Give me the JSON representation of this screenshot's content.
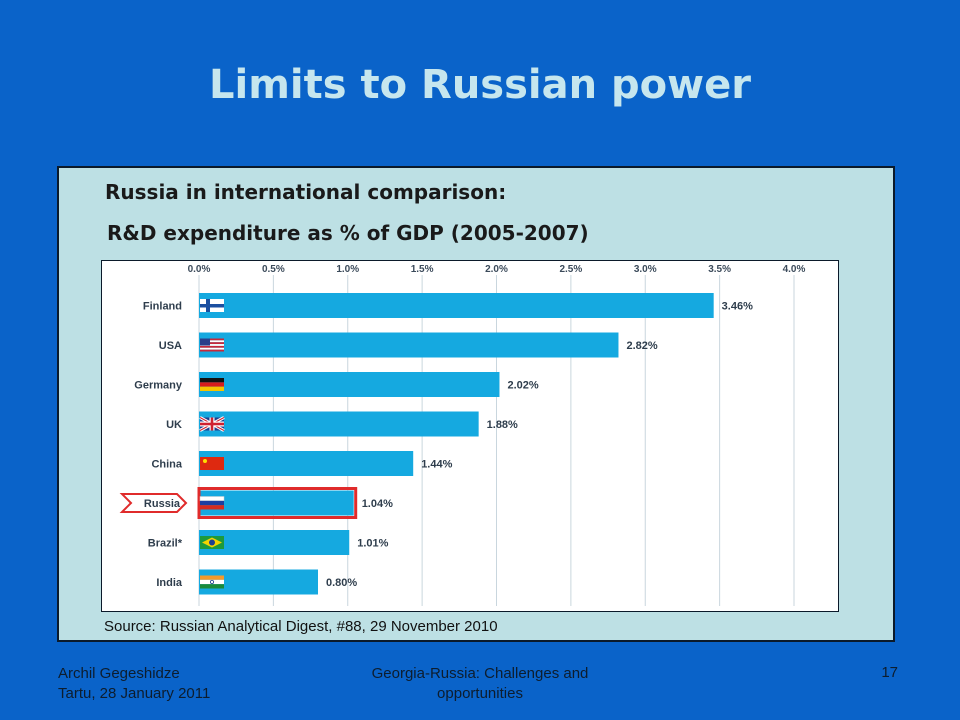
{
  "slide": {
    "title": "Limits to Russian power",
    "subtitle1": "Russia in international comparison:",
    "subtitle2": "R&D expenditure as % of GDP (2005-2007)",
    "source": "Source: Russian Analytical Digest, #88, 29 November 2010"
  },
  "footer": {
    "author": "Archil Gegeshidze",
    "place_date": "Tartu, 28 January 2011",
    "talk_title_line1": "Georgia-Russia: Challenges and",
    "talk_title_line2": "opportunities",
    "page_number": "17"
  },
  "colors": {
    "background": "#0a63c9",
    "title": "#c6e6ee",
    "panel": "#bde0e4",
    "bar": "#15a9e0",
    "highlight": "#e02b2b"
  },
  "chart_data": {
    "type": "bar",
    "orientation": "horizontal",
    "categories": [
      "Finland",
      "USA",
      "Germany",
      "UK",
      "China",
      "Russia",
      "Brazil*",
      "India"
    ],
    "values": [
      3.46,
      2.82,
      2.02,
      1.88,
      1.44,
      1.04,
      1.01,
      0.8
    ],
    "value_labels": [
      "3.46%",
      "2.82%",
      "2.02%",
      "1.88%",
      "1.44%",
      "1.04%",
      "1.01%",
      "0.80%"
    ],
    "xlim": [
      0,
      4.0
    ],
    "ticks": [
      0,
      0.5,
      1.0,
      1.5,
      2.0,
      2.5,
      3.0,
      3.5,
      4.0
    ],
    "tick_labels": [
      "0.0%",
      "0.5%",
      "1.0%",
      "1.5%",
      "2.0%",
      "2.5%",
      "3.0%",
      "3.5%",
      "4.0%"
    ],
    "tick_position": "top",
    "grid": true,
    "highlight": "Russia",
    "flag_icons": [
      "finland-flag-icon",
      "usa-flag-icon",
      "germany-flag-icon",
      "uk-flag-icon",
      "china-flag-icon",
      "russia-flag-icon",
      "brazil-flag-icon",
      "india-flag-icon"
    ]
  }
}
